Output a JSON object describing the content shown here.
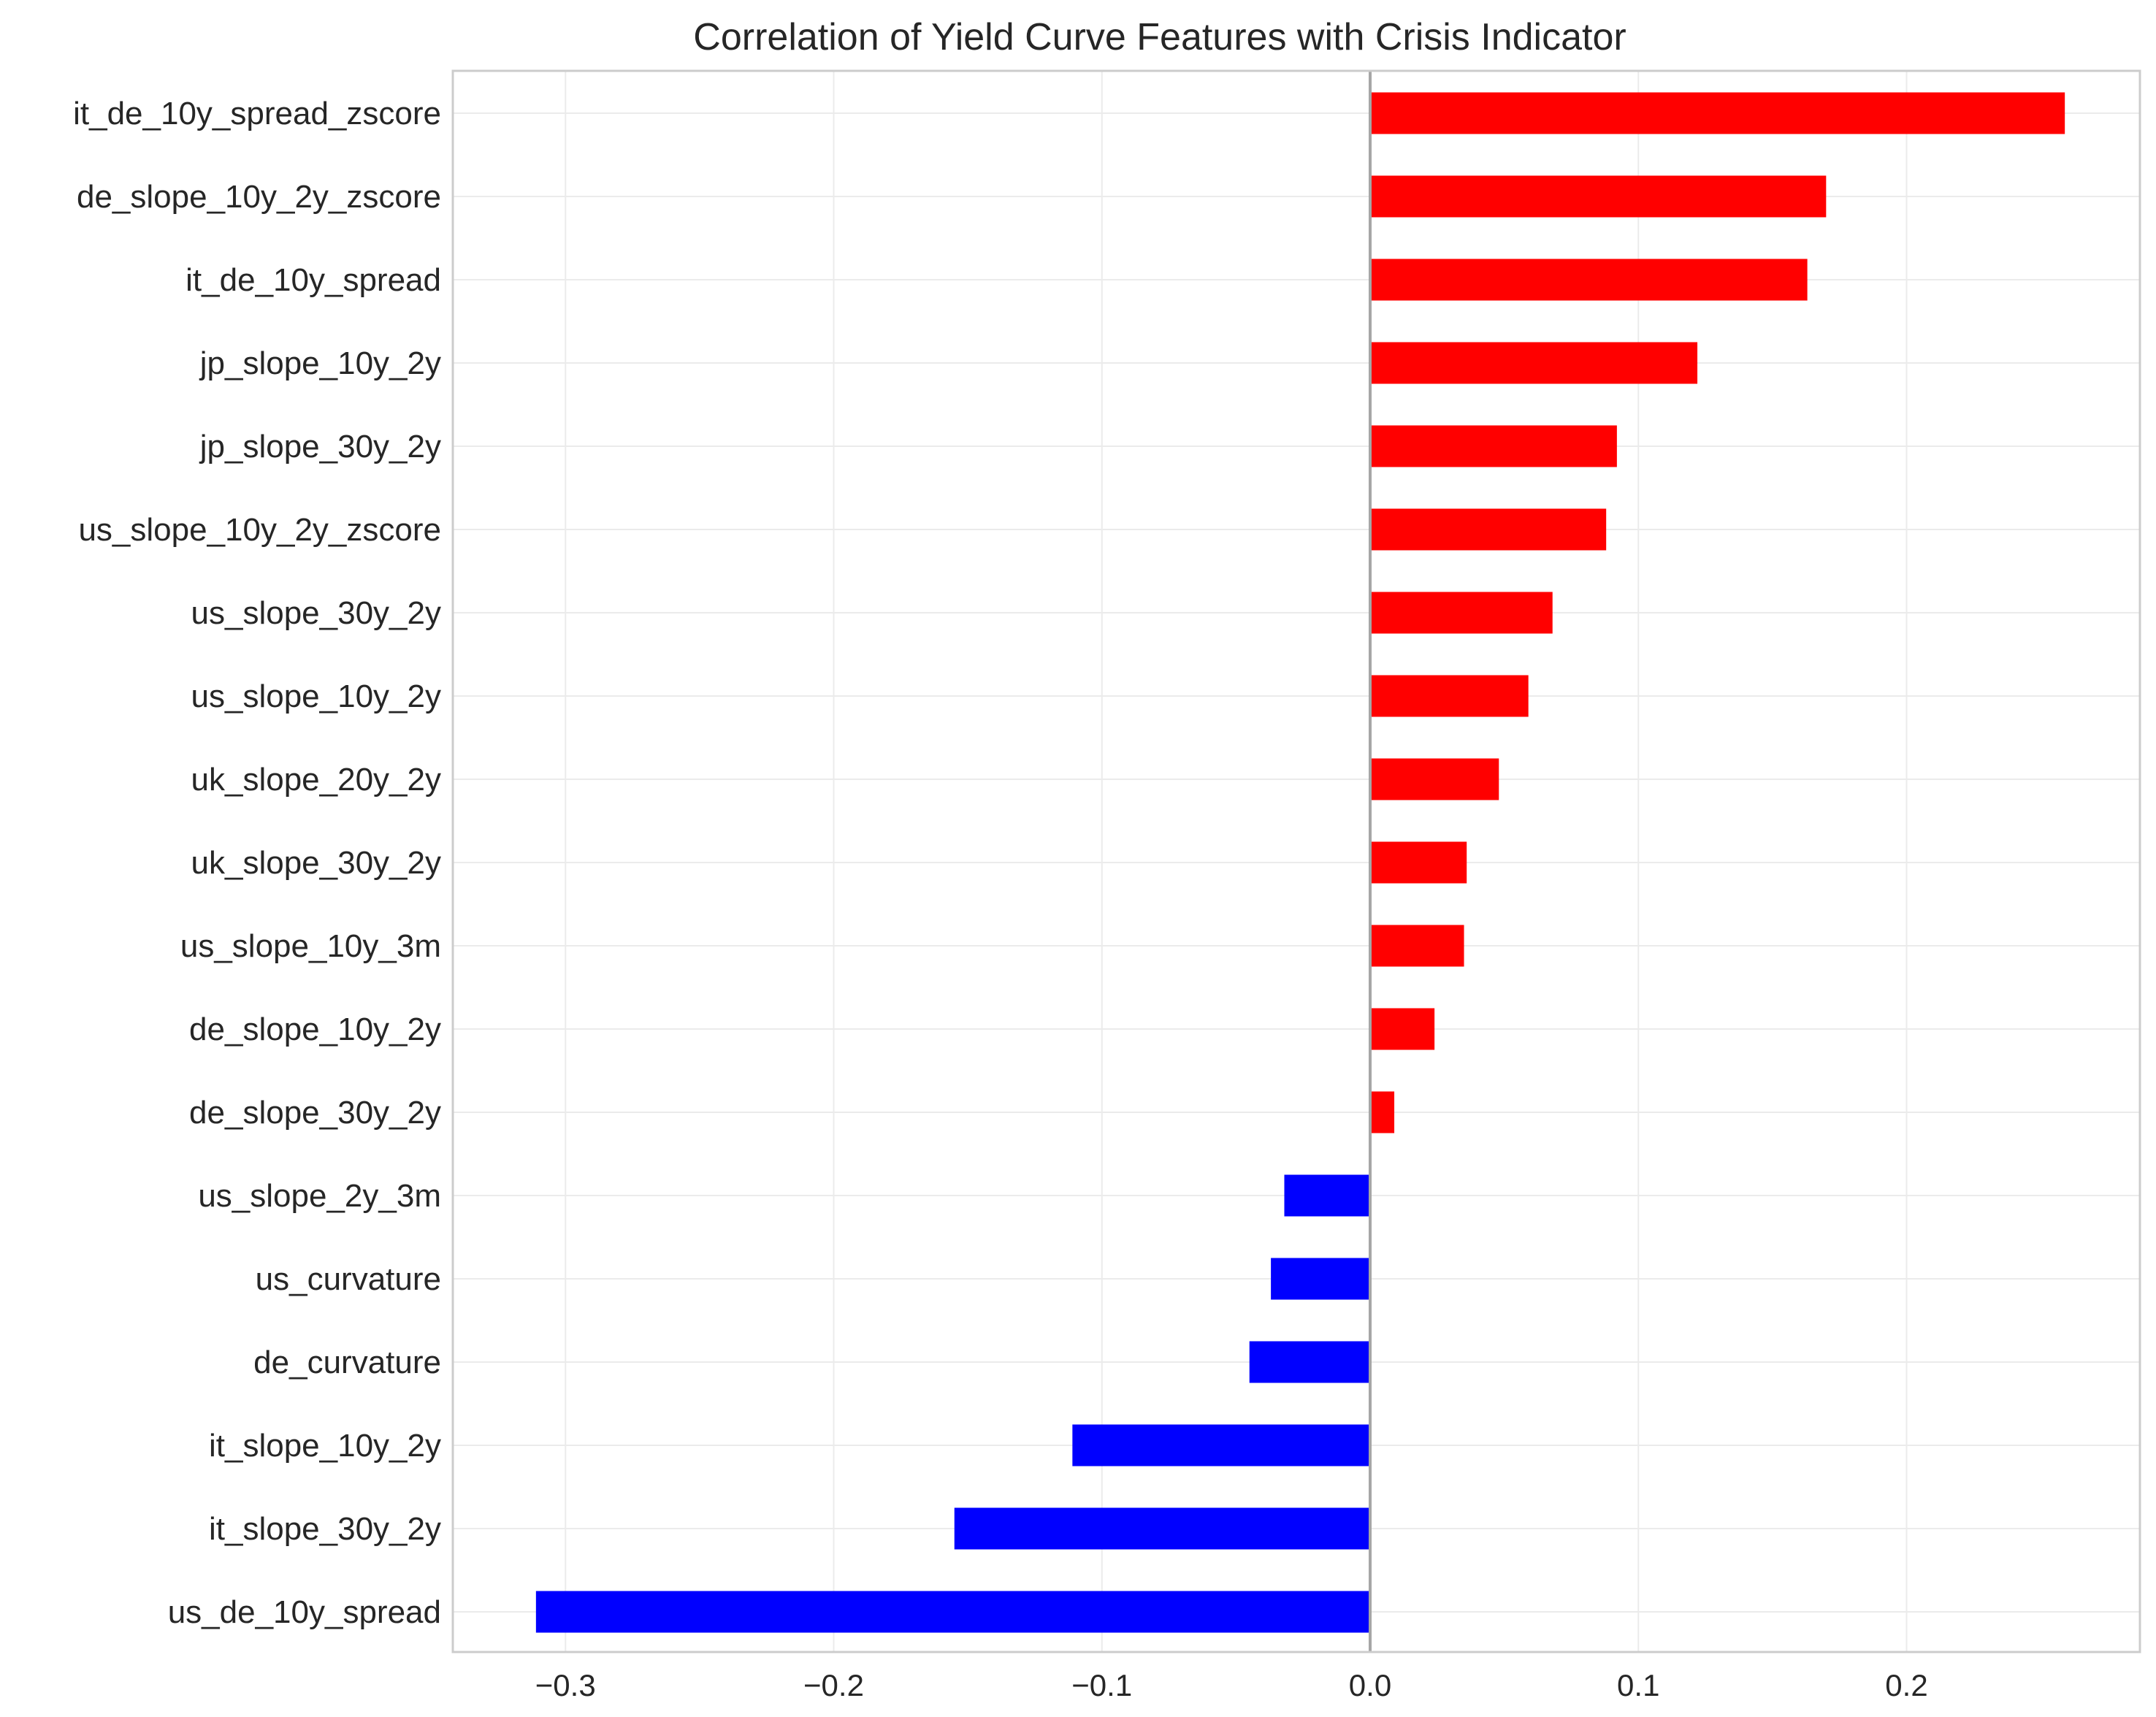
{
  "chart_data": {
    "type": "bar",
    "orientation": "horizontal",
    "title": "Correlation of Yield Curve Features with Crisis Indicator",
    "xlabel": "",
    "ylabel": "",
    "xlim": [
      -0.342,
      0.287
    ],
    "xticks": [
      -0.3,
      -0.2,
      -0.1,
      0.0,
      0.1,
      0.2
    ],
    "xtick_labels": [
      "−0.3",
      "−0.2",
      "−0.1",
      "0.0",
      "0.1",
      "0.2"
    ],
    "grid": true,
    "zero_line": true,
    "categories": [
      "it_de_10y_spread_zscore",
      "de_slope_10y_2y_zscore",
      "it_de_10y_spread",
      "jp_slope_10y_2y",
      "jp_slope_30y_2y",
      "us_slope_10y_2y_zscore",
      "us_slope_30y_2y",
      "us_slope_10y_2y",
      "uk_slope_20y_2y",
      "uk_slope_30y_2y",
      "us_slope_10y_3m",
      "de_slope_10y_2y",
      "de_slope_30y_2y",
      "us_slope_2y_3m",
      "us_curvature",
      "de_curvature",
      "it_slope_10y_2y",
      "it_slope_30y_2y",
      "us_de_10y_spread"
    ],
    "values": [
      0.259,
      0.17,
      0.163,
      0.122,
      0.092,
      0.088,
      0.068,
      0.059,
      0.048,
      0.036,
      0.035,
      0.024,
      0.009,
      -0.032,
      -0.037,
      -0.045,
      -0.111,
      -0.155,
      -0.311
    ],
    "colors": {
      "positive": "#ff0000",
      "negative": "#0000ff",
      "zero_line": "#a6a6a6",
      "grid": "#ebebeb",
      "spine": "#cccccc"
    }
  }
}
